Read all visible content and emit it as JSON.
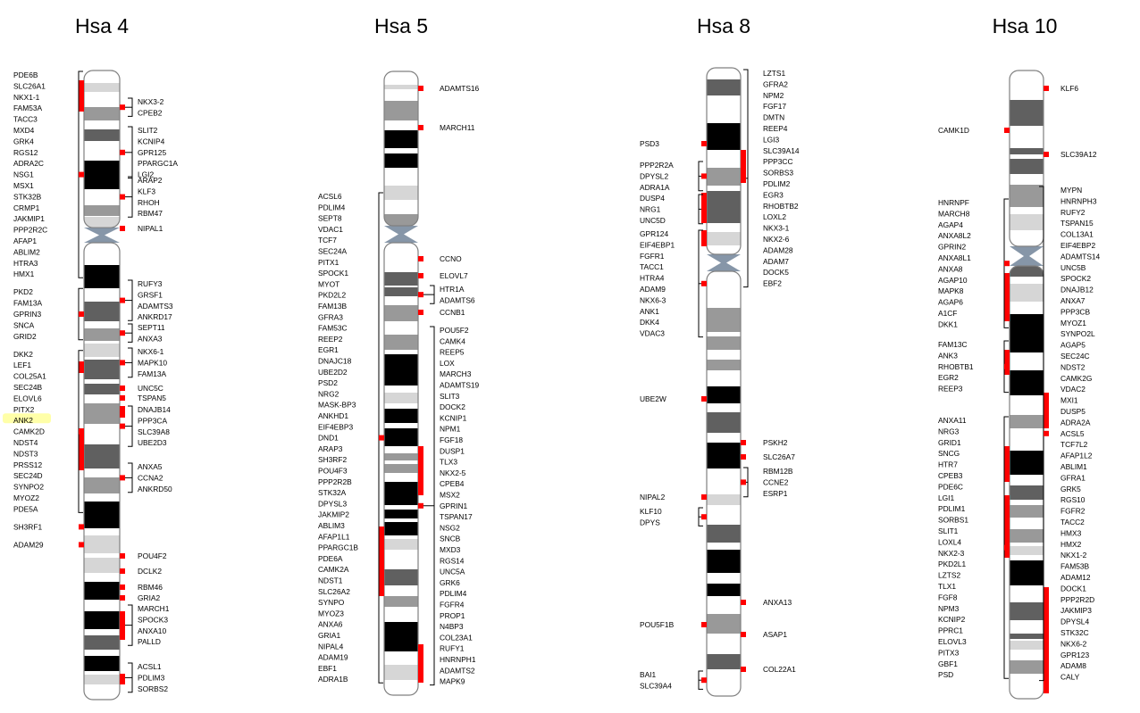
{
  "colors": {
    "marker": "#ff0000",
    "outline": "#808080",
    "highlight": "#ffff99",
    "band_dark": "#000000",
    "band_mid": "#606060",
    "band_gray": "#999999",
    "band_light": "#d6d6d6",
    "centromere": "#8696a8"
  },
  "chromosomes": [
    {
      "id": "hsa4",
      "title": "Hsa 4",
      "left_blocks": [
        [
          "PDE6B",
          "SLC26A1",
          "NKX1-1",
          "FAM53A",
          "TACC3",
          "MXD4",
          "GRK4",
          "RGS12",
          "ADRA2C",
          "NSG1",
          "MSX1",
          "STK32B",
          "CRMP1",
          "JAKMIP1",
          "PPP2R2C",
          "AFAP1",
          "ABLIM2",
          "HTRA3",
          "HMX1"
        ],
        [
          "PKD2",
          "FAM13A",
          "GPRIN3",
          "SNCA",
          "GRID2"
        ],
        [
          "DKK2",
          "LEF1",
          "COL25A1",
          "SEC24B",
          "ELOVL6",
          "PITX2",
          "ANK2",
          "CAMK2D",
          "NDST4",
          "NDST3",
          "PRSS12",
          "SEC24D",
          "SYNPO2",
          "MYOZ2",
          "PDE5A"
        ],
        [
          "SH3RF1"
        ],
        [
          "ADAM29"
        ]
      ],
      "right_blocks": [
        [
          "NKX3-2",
          "CPEB2"
        ],
        [
          "SLIT2",
          "KCNIP4",
          "GPR125",
          "PPARGC1A",
          "LGI2"
        ],
        [
          "ARAP2",
          "KLF3",
          "RHOH",
          "RBM47"
        ],
        [
          "NIPAL1"
        ],
        [
          "RUFY3",
          "GRSF1",
          "ADAMTS3",
          "ANKRD17"
        ],
        [
          "SEPT11",
          "ANXA3"
        ],
        [
          "NKX6-1",
          "MAPK10",
          "FAM13A"
        ],
        [
          "UNC5C"
        ],
        [
          "TSPAN5"
        ],
        [
          "DNAJB14",
          "PPP3CA",
          "SLC39A8",
          "UBE2D3"
        ],
        [
          "ANXA5",
          "CCNA2",
          "ANKRD50"
        ],
        [
          "POU4F2"
        ],
        [
          "DCLK2"
        ],
        [
          "RBM46"
        ],
        [
          "GRIA2"
        ],
        [
          "MARCH1",
          "SPOCK3",
          "ANXA10",
          "PALLD"
        ],
        [
          "ACSL1",
          "PDLIM3",
          "SORBS2"
        ]
      ],
      "highlighted_gene": "ANK2"
    },
    {
      "id": "hsa5",
      "title": "Hsa 5",
      "left_blocks": [
        [
          "ACSL6",
          "PDLIM4",
          "SEPT8",
          "VDAC1",
          "TCF7",
          "SEC24A",
          "PITX1",
          "SPOCK1",
          "MYOT",
          "PKD2L2",
          "FAM13B",
          "GFRA3",
          "FAM53C",
          "REEP2",
          "EGR1",
          "DNAJC18",
          "UBE2D2",
          "PSD2",
          "NRG2",
          "MASK-BP3",
          "ANKHD1",
          "EIF4EBP3",
          "DND1",
          "ARAP3",
          "SH3RF2",
          "POU4F3",
          "PPP2R2B",
          "STK32A",
          "DPYSL3",
          "JAKMIP2",
          "ABLIM3",
          "AFAP1L1",
          "PPARGC1B",
          "PDE6A",
          "CAMK2A",
          "NDST1",
          "SLC26A2",
          "SYNPO",
          "MYOZ3",
          "ANXA6",
          "GRIA1",
          "NIPAL4",
          "ADAM19",
          "EBF1",
          "ADRA1B"
        ]
      ],
      "right_blocks": [
        [
          "ADAMTS16"
        ],
        [
          "MARCH11"
        ],
        [
          "CCNO"
        ],
        [
          "ELOVL7"
        ],
        [
          "HTR1A",
          "ADAMTS6"
        ],
        [
          "CCNB1"
        ],
        [
          "POU5F2",
          "CAMK4",
          "REEP5",
          "LOX",
          "MARCH3",
          "ADAMTS19",
          "SLIT3",
          "DOCK2",
          "KCNIP1",
          "NPM1",
          "FGF18",
          "DUSP1",
          "TLX3",
          "NKX2-5",
          "CPEB4",
          "MSX2",
          "GPRIN1",
          "TSPAN17",
          "NSG2",
          "SNCB",
          "MXD3",
          "RGS14",
          "UNC5A",
          "GRK6",
          "PDLIM4",
          "FGFR4",
          "PROP1",
          "N4BP3",
          "COL23A1",
          "RUFY1",
          "HNRNPH1",
          "ADAMTS2",
          "MAPK9"
        ]
      ]
    },
    {
      "id": "hsa8",
      "title": "Hsa 8",
      "left_blocks": [
        [
          "PSD3"
        ],
        [
          "PPP2R2A",
          "DPYSL2",
          "ADRA1A"
        ],
        [
          "DUSP4",
          "NRG1",
          "UNC5D"
        ],
        [
          "GPR124",
          "EIF4EBP1",
          "FGFR1",
          "TACC1",
          "HTRA4",
          "ADAM9",
          "NKX6-3",
          "ANK1",
          "DKK4",
          "VDAC3"
        ],
        [
          "UBE2W"
        ],
        [
          "NIPAL2"
        ],
        [
          "KLF10",
          "DPYS"
        ],
        [
          "POU5F1B"
        ],
        [
          "BAI1",
          "SLC39A4"
        ]
      ],
      "right_blocks": [
        [
          "LZTS1",
          "GFRA2",
          "NPM2",
          "FGF17",
          "DMTN",
          "REEP4",
          "LGI3",
          "SLC39A14",
          "PPP3CC",
          "SORBS3",
          "PDLIM2",
          "EGR3",
          "RHOBTB2",
          "LOXL2",
          "NKX3-1",
          "NKX2-6",
          "ADAM28",
          "ADAM7",
          "DOCK5",
          "EBF2"
        ],
        [
          "PSKH2"
        ],
        [
          "SLC26A7"
        ],
        [
          "RBM12B",
          "CCNE2",
          "ESRP1"
        ],
        [
          "ANXA13"
        ],
        [
          "ASAP1"
        ],
        [
          "COL22A1"
        ]
      ]
    },
    {
      "id": "hsa10",
      "title": "Hsa 10",
      "left_blocks": [
        [
          "CAMK1D"
        ],
        [
          "HNRNPF",
          "MARCH8",
          "AGAP4",
          "ANXA8L2",
          "GPRIN2",
          "ANXA8L1",
          "ANXA8",
          "AGAP10",
          "MAPK8",
          "AGAP6",
          "A1CF",
          "DKK1"
        ],
        [
          "FAM13C",
          "ANK3",
          "RHOBTB1",
          "EGR2",
          "REEP3"
        ],
        [
          "ANXA11",
          "NRG3",
          "GRID1",
          "SNCG",
          "HTR7",
          "CPEB3",
          "PDE6C",
          "LGI1",
          "PDLIM1",
          "SORBS1",
          "SLIT1",
          "LOXL4",
          "NKX2-3",
          "PKD2L1",
          "LZTS2",
          "TLX1",
          "FGF8",
          "NPM3",
          "KCNIP2",
          "PPRC1",
          "ELOVL3",
          "PITX3",
          "GBF1",
          "PSD"
        ]
      ],
      "right_blocks": [
        [
          "KLF6"
        ],
        [
          "SLC39A12"
        ],
        [
          "MYPN",
          "HNRNPH3",
          "RUFY2",
          "TSPAN15",
          "COL13A1",
          "EIF4EBP2",
          "ADAMTS14",
          "UNC5B",
          "SPOCK2",
          "DNAJB12",
          "ANXA7",
          "PPP3CB",
          "MYOZ1",
          "SYNPO2L",
          "AGAP5",
          "SEC24C",
          "NDST2",
          "CAMK2G",
          "VDAC2",
          "MXI1",
          "DUSP5",
          "ADRA2A",
          "ACSL5",
          "TCF7L2",
          "AFAP1L2",
          "ABLIM1",
          "GFRA1",
          "GRK5",
          "RGS10",
          "FGFR2",
          "TACC2",
          "HMX3",
          "HMX2",
          "NKX1-2",
          "FAM53B",
          "ADAM12",
          "DOCK1",
          "PPP2R2D",
          "JAKMIP3",
          "DPYSL4",
          "STK32C",
          "NKX6-2",
          "GPR123",
          "ADAM8",
          "CALY"
        ]
      ]
    }
  ]
}
